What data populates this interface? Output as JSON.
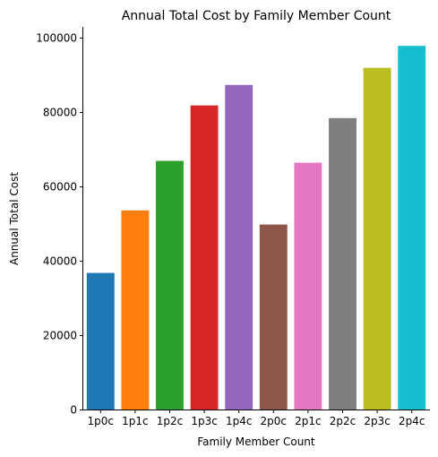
{
  "chart_data": {
    "type": "bar",
    "title": "Annual Total Cost by Family Member Count",
    "xlabel": "Family Member Count",
    "ylabel": "Annual Total Cost",
    "categories": [
      "1p0c",
      "1p1c",
      "1p2c",
      "1p3c",
      "1p4c",
      "2p0c",
      "2p1c",
      "2p2c",
      "2p3c",
      "2p4c"
    ],
    "values": [
      36700,
      53500,
      66800,
      81700,
      87200,
      49700,
      66300,
      78300,
      91800,
      97700
    ],
    "colors": [
      "#1f77b4",
      "#ff7f0e",
      "#2ca02c",
      "#d62728",
      "#9467bd",
      "#8c564b",
      "#e377c2",
      "#7f7f7f",
      "#bcbd22",
      "#17becf"
    ],
    "yticks": [
      0,
      20000,
      40000,
      60000,
      80000,
      100000
    ],
    "ylim": [
      0,
      102800
    ],
    "grid": false,
    "legend": "none"
  }
}
